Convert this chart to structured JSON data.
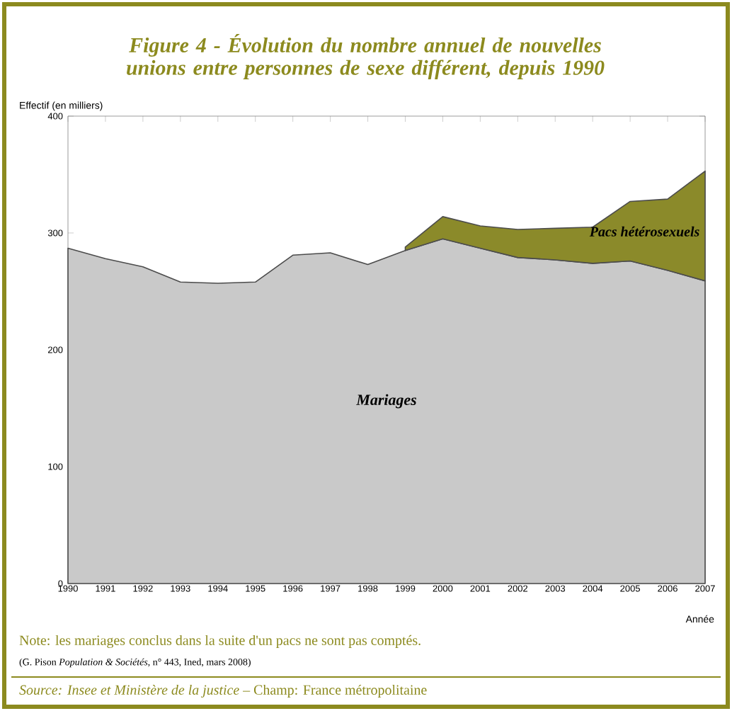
{
  "chart_data": {
    "type": "area",
    "stacked": true,
    "title": "Figure 4 - Évolution du nombre annuel de nouvelles unions entre personnes de sexe différent, depuis 1990",
    "ylabel": "Effectif (en milliers)",
    "xlabel": "Année",
    "categories": [
      "1990",
      "1991",
      "1992",
      "1993",
      "1994",
      "1995",
      "1996",
      "1997",
      "1998",
      "1999",
      "2000",
      "2001",
      "2002",
      "2003",
      "2004",
      "2005",
      "2006",
      "2007"
    ],
    "ylim": [
      0,
      400
    ],
    "yticks": [
      0,
      100,
      200,
      300,
      400
    ],
    "series": [
      {
        "name": "Mariages",
        "color": "#c9c9c9",
        "values": [
          287,
          278,
          271,
          258,
          257,
          258,
          281,
          283,
          273,
          285,
          295,
          287,
          279,
          277,
          274,
          276,
          268,
          259
        ]
      },
      {
        "name": "Pacs hétérosexuels",
        "color": "#8b8a2a",
        "values": [
          null,
          null,
          null,
          null,
          null,
          null,
          null,
          null,
          null,
          3,
          19,
          19,
          24,
          27,
          31,
          51,
          61,
          94
        ]
      }
    ],
    "annotations": [
      "Note: les mariages conclus dans la suite d'un pacs ne sont pas comptés.",
      "(G. Pison *Population & Sociétés*, n° 443, Ined, mars 2008)",
      "*Source: Insee et Ministère de la justice* – Champ: France métropolitaine"
    ]
  }
}
